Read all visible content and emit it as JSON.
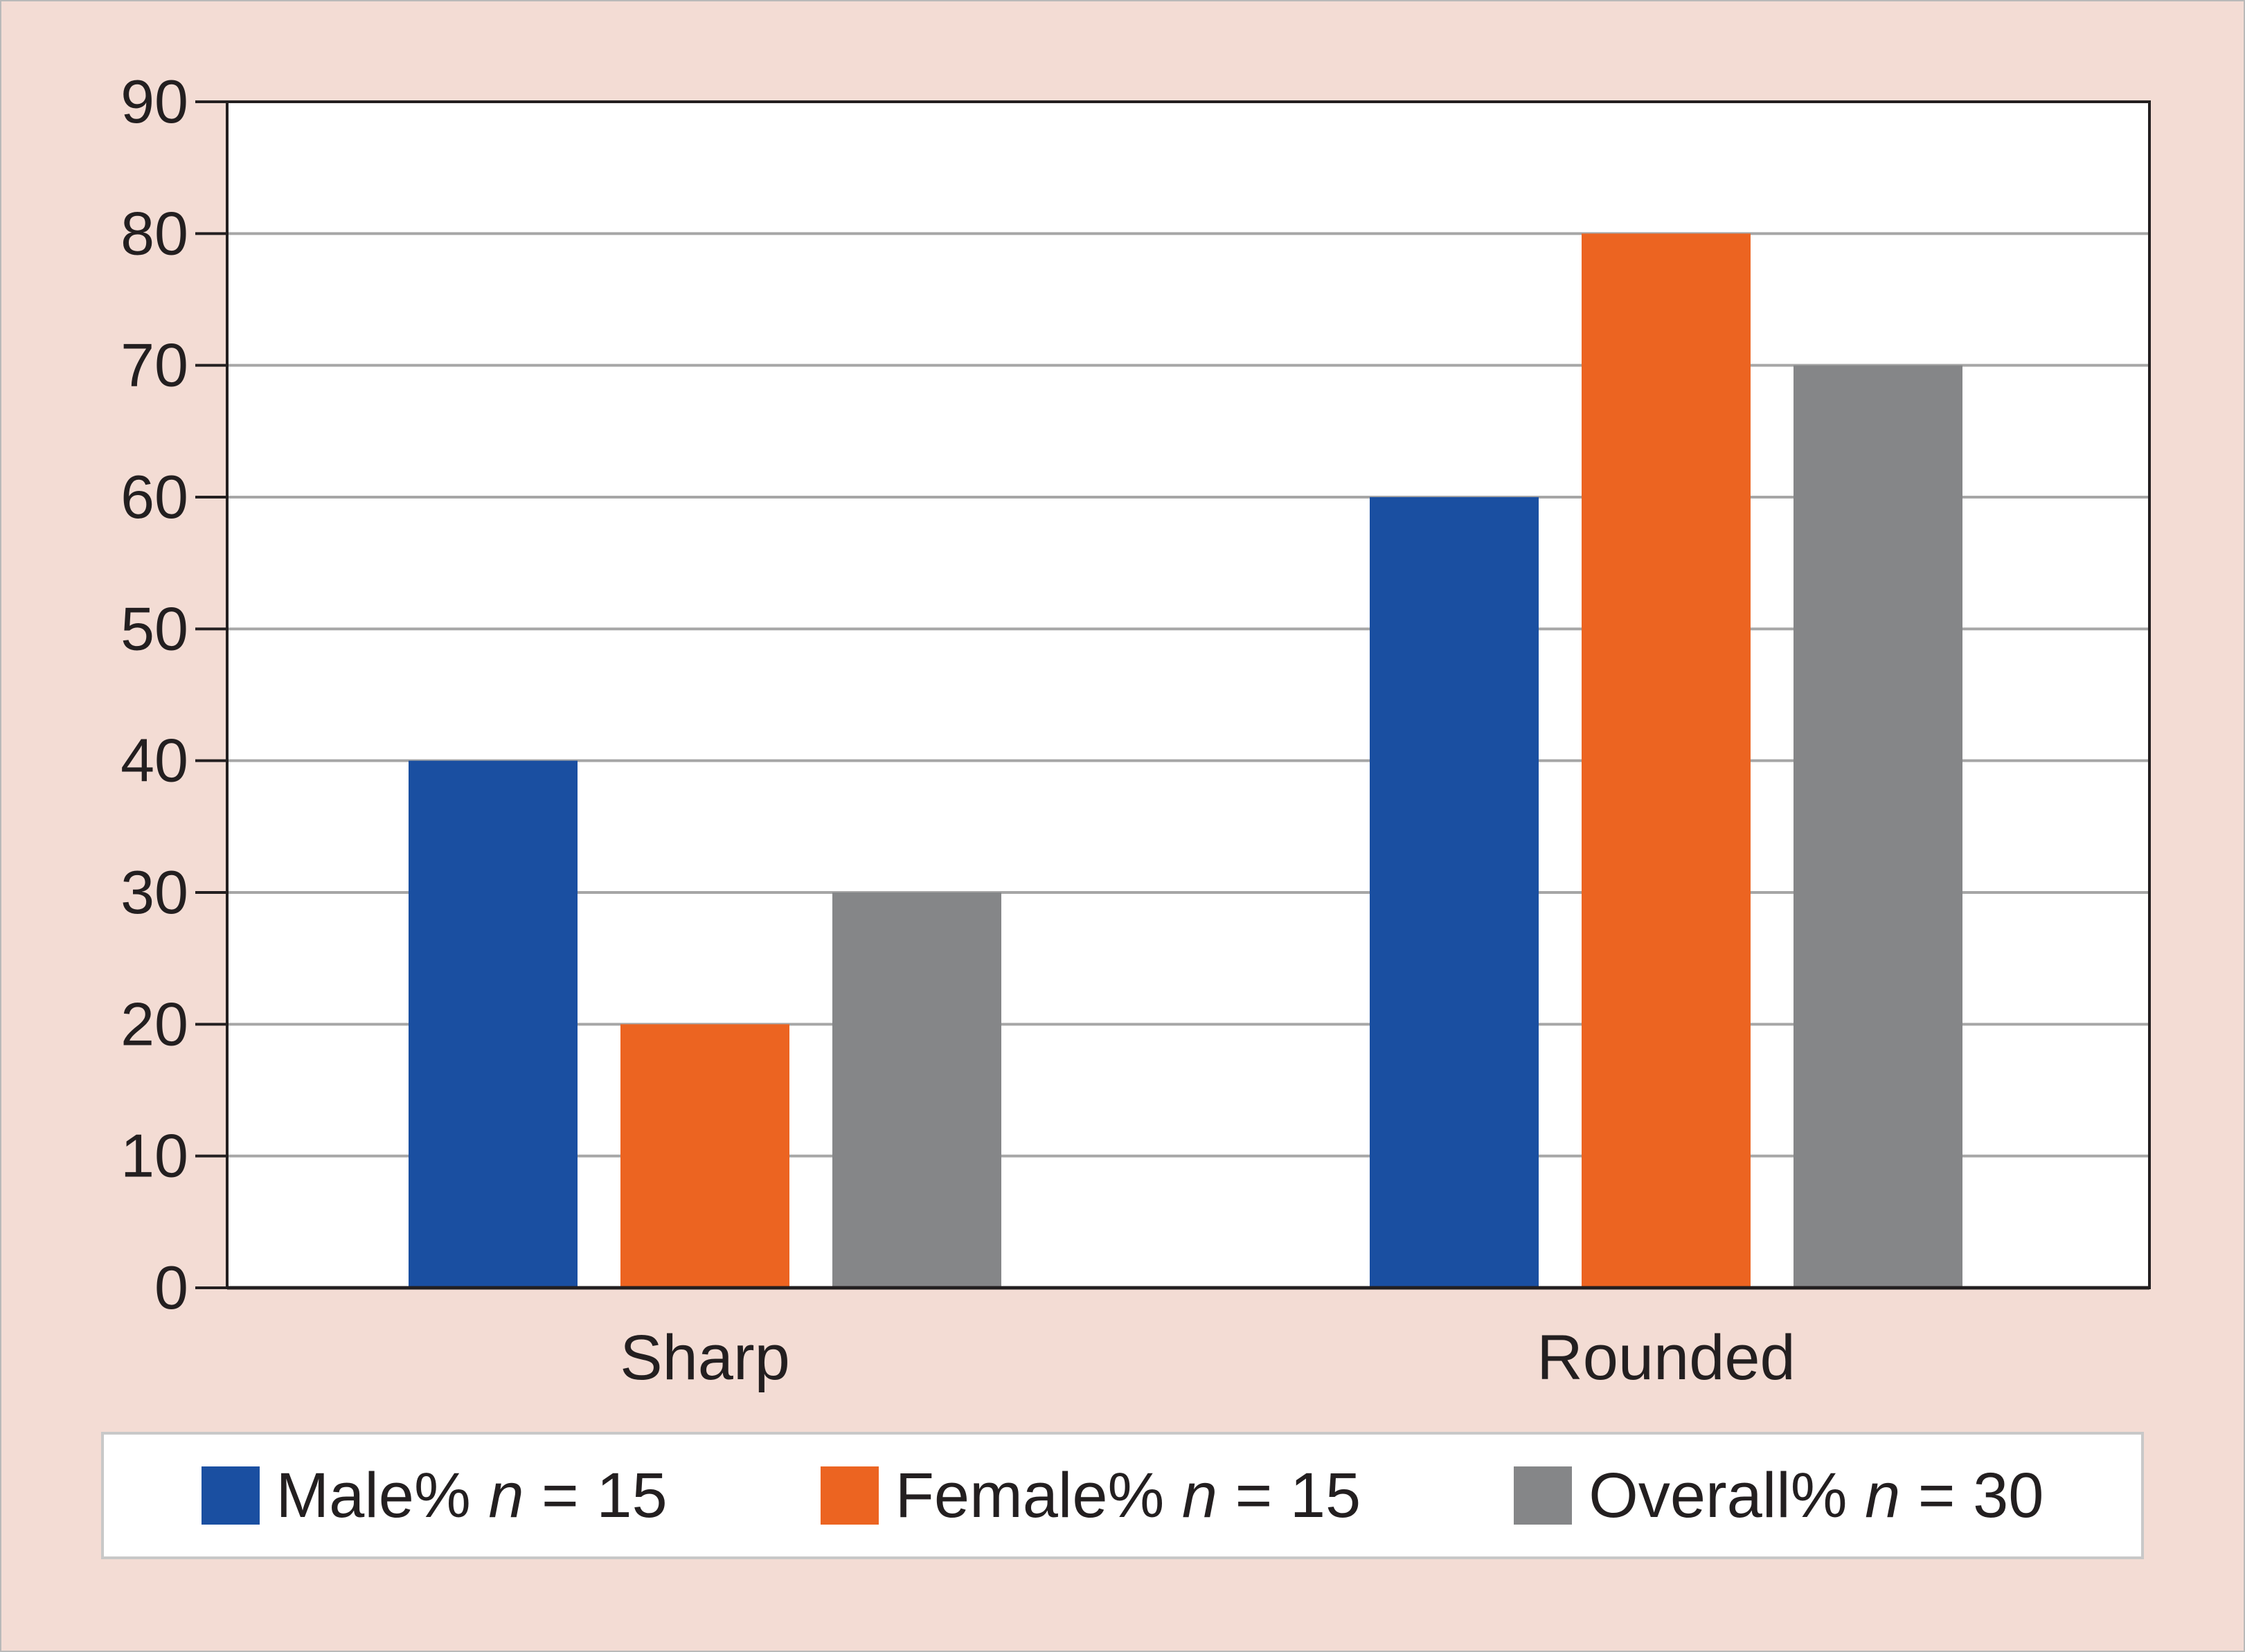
{
  "colors": {
    "background": "#f3dcd4",
    "male": "#1a4fa1",
    "female": "#ec6421",
    "overall": "#858688",
    "grid": "#a6a6a6",
    "axis": "#231f20"
  },
  "chart_data": {
    "type": "bar",
    "title": "",
    "xlabel": "",
    "ylabel": "",
    "categories": [
      "Sharp",
      "Rounded"
    ],
    "series": [
      {
        "name": "Male% n = 15",
        "label_main": "Male%",
        "label_n": "n",
        "label_rest": " = 15",
        "color": "#1a4fa1",
        "values": [
          40,
          60
        ]
      },
      {
        "name": "Female% n = 15",
        "label_main": "Female%",
        "label_n": "n",
        "label_rest": " = 15",
        "color": "#ec6421",
        "values": [
          20,
          80
        ]
      },
      {
        "name": "Overall% n = 30",
        "label_main": "Overall%",
        "label_n": "n",
        "label_rest": " = 30",
        "color": "#858688",
        "values": [
          30,
          70
        ]
      }
    ],
    "ylim": [
      0,
      90
    ],
    "yticks": [
      0,
      10,
      20,
      30,
      40,
      50,
      60,
      70,
      80,
      90
    ],
    "grid": true,
    "legend_position": "bottom"
  }
}
